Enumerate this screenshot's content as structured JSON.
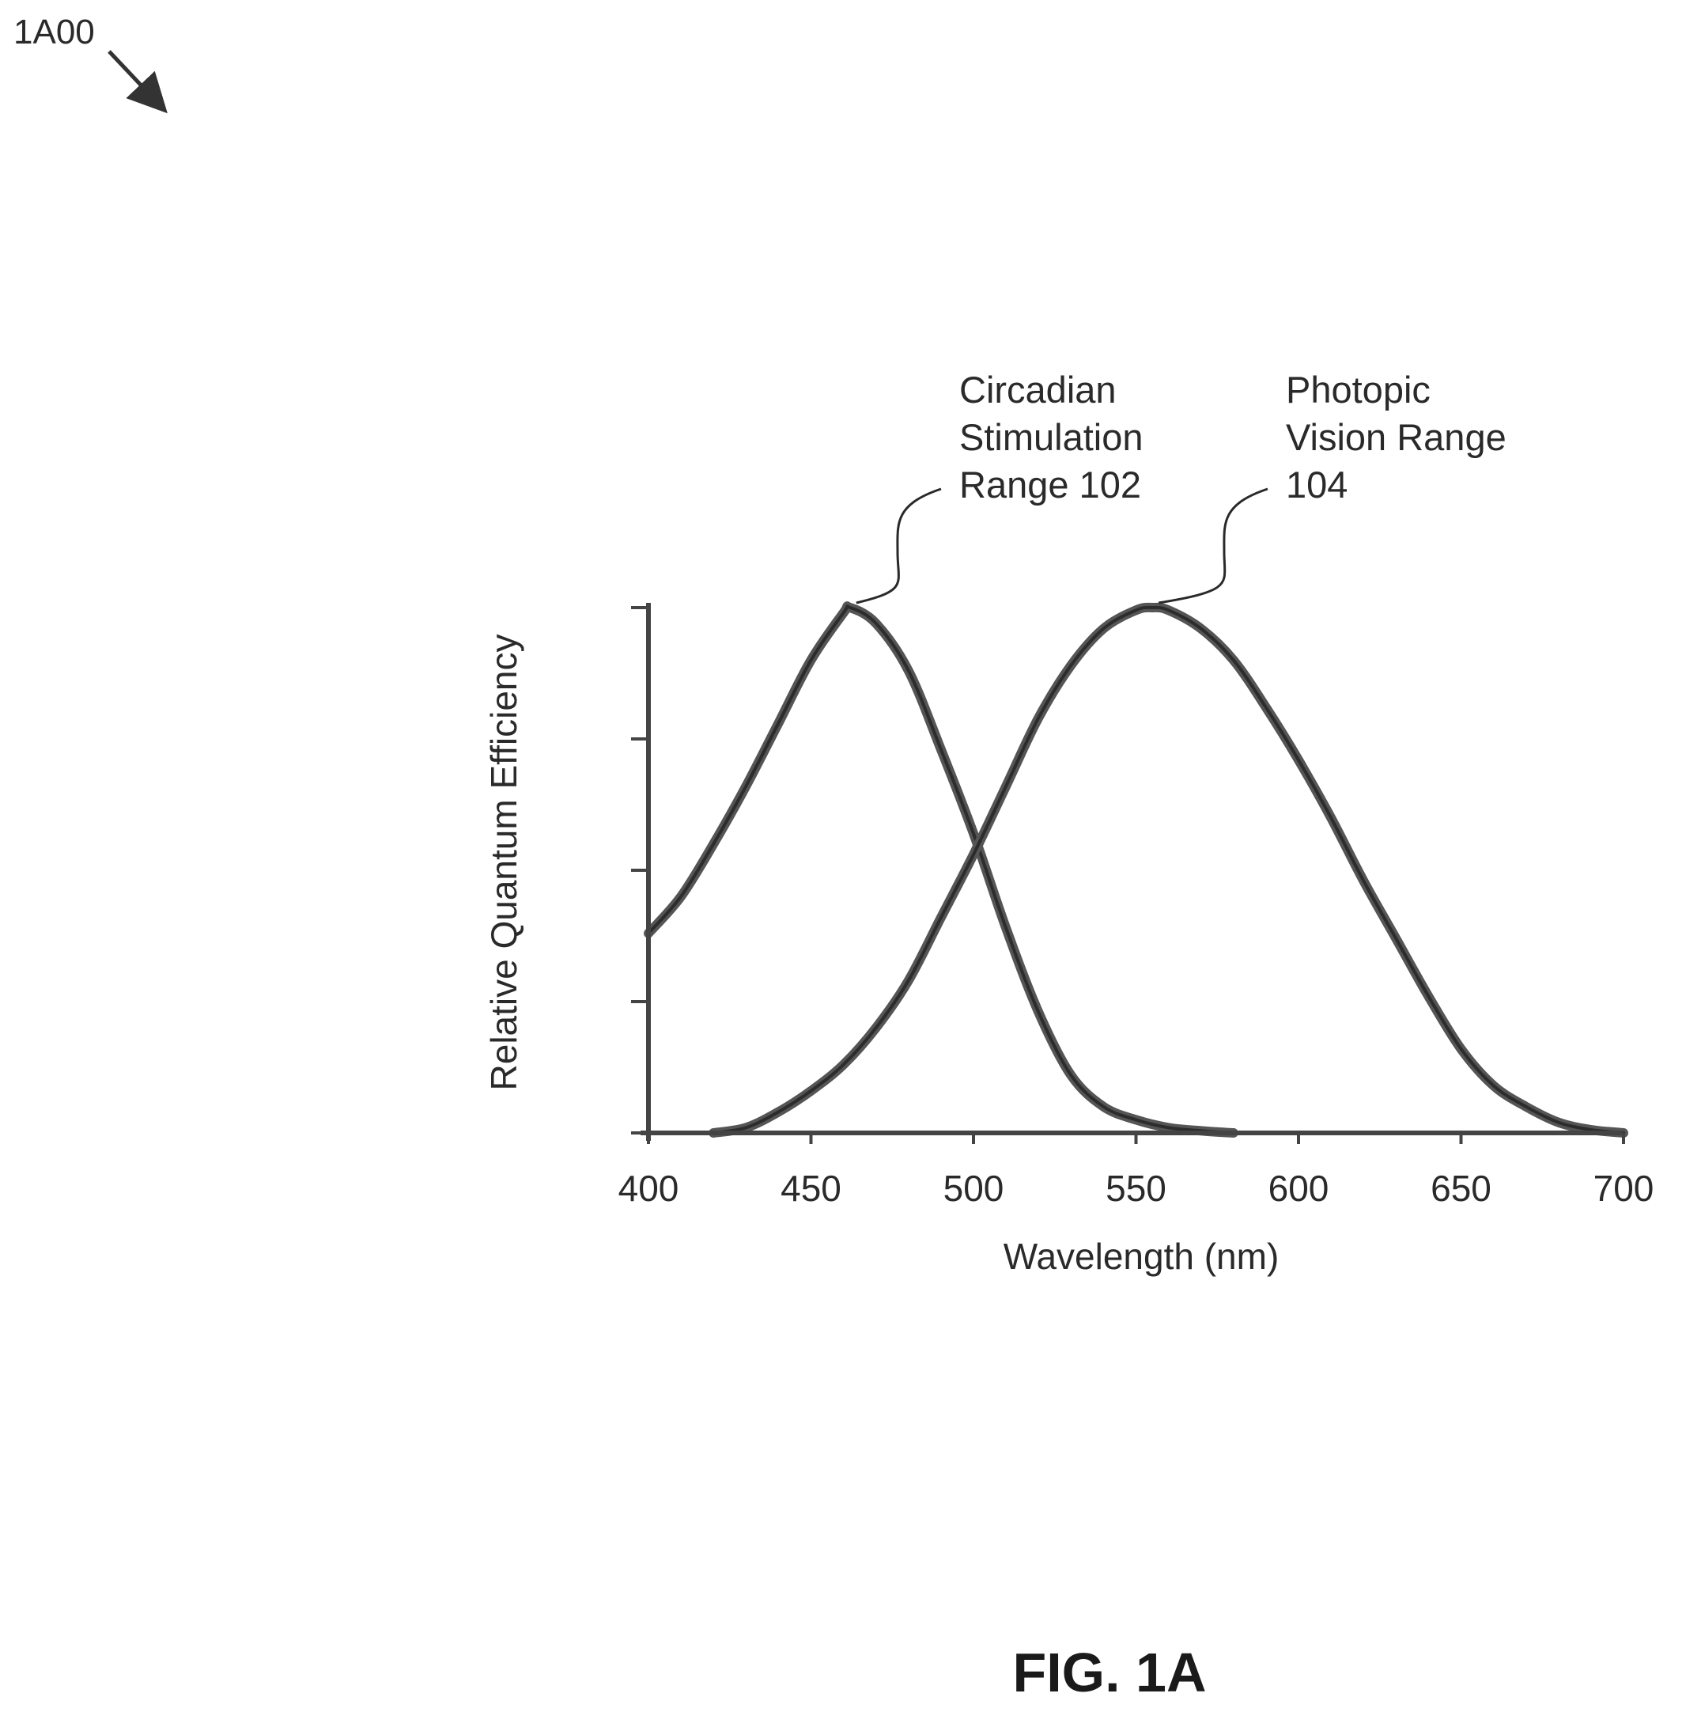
{
  "figure": {
    "reference_label": "1A00",
    "caption": "FIG. 1A"
  },
  "chart_data": {
    "type": "line",
    "title": "",
    "xlabel": "Wavelength (nm)",
    "ylabel": "Relative Quantum Efficiency",
    "xlim": [
      400,
      700
    ],
    "ylim": [
      0,
      1
    ],
    "x_ticks": [
      400,
      450,
      500,
      550,
      600,
      650,
      700
    ],
    "y_ticks": [
      0,
      0.25,
      0.5,
      0.75,
      1
    ],
    "y_tick_labels_shown": false,
    "grid": false,
    "legend": "none",
    "line_color": "#555555",
    "series": [
      {
        "key": "circadian",
        "x": [
          400,
          410,
          420,
          430,
          440,
          450,
          460,
          462,
          470,
          480,
          490,
          500,
          510,
          520,
          530,
          540,
          550,
          560,
          570,
          580
        ],
        "y": [
          0.38,
          0.45,
          0.55,
          0.66,
          0.78,
          0.9,
          0.99,
          1.0,
          0.97,
          0.88,
          0.73,
          0.57,
          0.39,
          0.23,
          0.11,
          0.05,
          0.025,
          0.01,
          0.004,
          0.0
        ]
      },
      {
        "key": "photopic",
        "x": [
          420,
          430,
          440,
          450,
          460,
          470,
          480,
          490,
          500,
          510,
          520,
          530,
          540,
          550,
          555,
          560,
          570,
          580,
          590,
          600,
          610,
          620,
          630,
          640,
          650,
          660,
          670,
          680,
          690,
          700
        ],
        "y": [
          0.0,
          0.01,
          0.04,
          0.08,
          0.13,
          0.2,
          0.29,
          0.41,
          0.53,
          0.66,
          0.79,
          0.89,
          0.96,
          0.995,
          1.0,
          0.995,
          0.96,
          0.9,
          0.81,
          0.71,
          0.6,
          0.48,
          0.37,
          0.26,
          0.16,
          0.09,
          0.05,
          0.02,
          0.006,
          0.0
        ]
      }
    ],
    "annotations": [
      {
        "series": "circadian",
        "lines": [
          "Circadian",
          "Stimulation",
          "Range 102"
        ],
        "points_to": [
          462,
          1.0
        ]
      },
      {
        "series": "photopic",
        "lines": [
          "Photopic",
          "Vision Range",
          "104"
        ],
        "points_to": [
          555,
          1.0
        ]
      }
    ]
  }
}
